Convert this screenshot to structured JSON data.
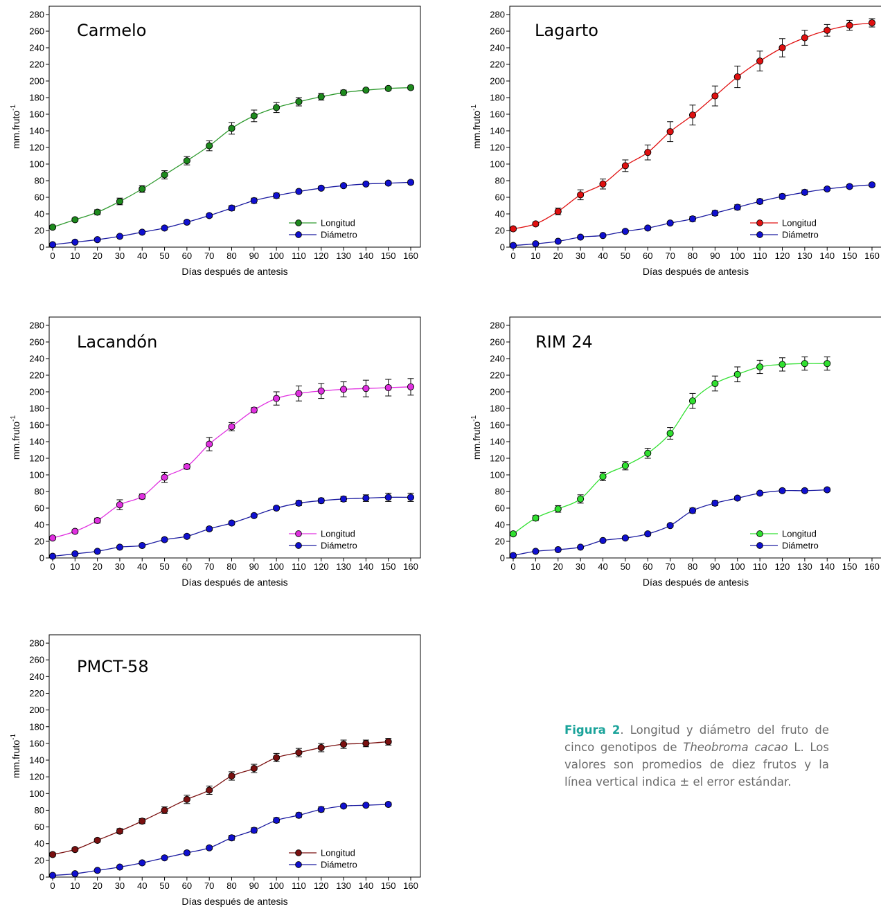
{
  "chart_data": [
    {
      "type": "line",
      "title": "Carmelo",
      "xlabel": "Días después de antesis",
      "ylabel": "mm.fruto",
      "ylabel_sup": "-1",
      "xlim": [
        0,
        160
      ],
      "ylim": [
        0,
        290
      ],
      "xticks": [
        0,
        10,
        20,
        30,
        40,
        50,
        60,
        70,
        80,
        90,
        100,
        110,
        120,
        130,
        140,
        150,
        160
      ],
      "yticks": [
        0,
        20,
        40,
        60,
        80,
        100,
        120,
        140,
        160,
        180,
        200,
        220,
        240,
        260,
        280
      ],
      "legend_position": "bottom-right",
      "grid": false,
      "series": [
        {
          "name": "Longitud",
          "color": "#1d8a1d",
          "line_color": "#2f9a2f",
          "x": [
            0,
            10,
            20,
            30,
            40,
            50,
            60,
            70,
            80,
            90,
            100,
            110,
            120,
            130,
            140,
            150,
            160
          ],
          "y": [
            24,
            33,
            42,
            55,
            70,
            87,
            104,
            122,
            143,
            158,
            168,
            175,
            181,
            186,
            189,
            191,
            192
          ],
          "err": [
            2,
            2,
            3,
            4,
            4,
            5,
            5,
            6,
            7,
            7,
            6,
            5,
            4,
            3,
            2,
            2,
            2
          ]
        },
        {
          "name": "Diámetro",
          "color": "#1010d0",
          "line_color": "#1a1aa0",
          "x": [
            0,
            10,
            20,
            30,
            40,
            50,
            60,
            70,
            80,
            90,
            100,
            110,
            120,
            130,
            140,
            150,
            160
          ],
          "y": [
            3,
            6,
            9,
            13,
            18,
            23,
            30,
            38,
            47,
            56,
            62,
            67,
            71,
            74,
            76,
            77,
            78
          ],
          "err": [
            1,
            1,
            1,
            1,
            1,
            2,
            2,
            2,
            3,
            3,
            3,
            2,
            2,
            2,
            2,
            2,
            2
          ]
        }
      ]
    },
    {
      "type": "line",
      "title": "Lagarto",
      "xlabel": "Días después de antesis",
      "ylabel": "mm.fruto",
      "ylabel_sup": "-1",
      "xlim": [
        0,
        160
      ],
      "ylim": [
        0,
        290
      ],
      "xticks": [
        0,
        10,
        20,
        30,
        40,
        50,
        60,
        70,
        80,
        90,
        100,
        110,
        120,
        130,
        140,
        150,
        160
      ],
      "yticks": [
        0,
        20,
        40,
        60,
        80,
        100,
        120,
        140,
        160,
        180,
        200,
        220,
        240,
        260,
        280
      ],
      "legend_position": "bottom-right",
      "grid": false,
      "series": [
        {
          "name": "Longitud",
          "color": "#e01010",
          "line_color": "#e01010",
          "x": [
            0,
            10,
            20,
            30,
            40,
            50,
            60,
            70,
            80,
            90,
            100,
            110,
            120,
            130,
            140,
            150,
            160
          ],
          "y": [
            22,
            28,
            43,
            63,
            76,
            98,
            114,
            139,
            159,
            182,
            205,
            224,
            240,
            252,
            261,
            267,
            270
          ],
          "err": [
            2,
            2,
            4,
            6,
            6,
            7,
            9,
            12,
            12,
            12,
            13,
            12,
            11,
            9,
            7,
            6,
            5
          ]
        },
        {
          "name": "Diámetro",
          "color": "#1010d0",
          "line_color": "#1a1aa0",
          "x": [
            0,
            10,
            20,
            30,
            40,
            50,
            60,
            70,
            80,
            90,
            100,
            110,
            120,
            130,
            140,
            150,
            160
          ],
          "y": [
            2,
            4,
            7,
            12,
            14,
            19,
            23,
            29,
            34,
            41,
            48,
            55,
            61,
            66,
            70,
            73,
            75
          ],
          "err": [
            1,
            1,
            1,
            1,
            1,
            2,
            2,
            2,
            3,
            3,
            3,
            3,
            3,
            3,
            2,
            2,
            2
          ]
        }
      ]
    },
    {
      "type": "line",
      "title": "Lacandón",
      "xlabel": "Días después de antesis",
      "ylabel": "mm.fruto",
      "ylabel_sup": "-1",
      "xlim": [
        0,
        160
      ],
      "ylim": [
        0,
        290
      ],
      "xticks": [
        0,
        10,
        20,
        30,
        40,
        50,
        60,
        70,
        80,
        90,
        100,
        110,
        120,
        130,
        140,
        150,
        160
      ],
      "yticks": [
        0,
        20,
        40,
        60,
        80,
        100,
        120,
        140,
        160,
        180,
        200,
        220,
        240,
        260,
        280
      ],
      "legend_position": "bottom-right",
      "grid": false,
      "series": [
        {
          "name": "Longitud",
          "color": "#e030e0",
          "line_color": "#e030e0",
          "x": [
            0,
            10,
            20,
            30,
            40,
            50,
            60,
            70,
            80,
            90,
            100,
            110,
            120,
            130,
            140,
            150,
            160
          ],
          "y": [
            24,
            32,
            45,
            64,
            74,
            97,
            110,
            137,
            158,
            178,
            192,
            198,
            201,
            203,
            204,
            205,
            206
          ],
          "err": [
            2,
            2,
            3,
            6,
            3,
            6,
            3,
            8,
            5,
            3,
            8,
            9,
            9,
            9,
            10,
            10,
            10
          ]
        },
        {
          "name": "Diámetro",
          "color": "#1010d0",
          "line_color": "#1a1aa0",
          "x": [
            0,
            10,
            20,
            30,
            40,
            50,
            60,
            70,
            80,
            90,
            100,
            110,
            120,
            130,
            140,
            150,
            160
          ],
          "y": [
            2,
            5,
            8,
            13,
            15,
            22,
            26,
            35,
            42,
            51,
            60,
            66,
            69,
            71,
            72,
            73,
            73
          ],
          "err": [
            1,
            1,
            1,
            1,
            1,
            2,
            2,
            2,
            2,
            2,
            2,
            3,
            3,
            3,
            4,
            5,
            5
          ]
        }
      ]
    },
    {
      "type": "line",
      "title": "RIM 24",
      "xlabel": "Días después de antesis",
      "ylabel": "mm.fruto",
      "ylabel_sup": "-1",
      "xlim": [
        0,
        160
      ],
      "ylim": [
        0,
        290
      ],
      "xticks": [
        0,
        10,
        20,
        30,
        40,
        50,
        60,
        70,
        80,
        90,
        100,
        110,
        120,
        130,
        140,
        150,
        160
      ],
      "yticks": [
        0,
        20,
        40,
        60,
        80,
        100,
        120,
        140,
        160,
        180,
        200,
        220,
        240,
        260,
        280
      ],
      "legend_position": "bottom-right",
      "grid": false,
      "series": [
        {
          "name": "Longitud",
          "color": "#30e030",
          "line_color": "#30e030",
          "x": [
            0,
            10,
            20,
            30,
            40,
            50,
            60,
            70,
            80,
            90,
            100,
            110,
            120,
            130,
            140
          ],
          "y": [
            29,
            48,
            59,
            71,
            98,
            111,
            126,
            150,
            189,
            210,
            221,
            230,
            233,
            234,
            234
          ],
          "err": [
            2,
            3,
            4,
            5,
            5,
            5,
            6,
            7,
            9,
            9,
            9,
            8,
            8,
            8,
            8
          ]
        },
        {
          "name": "Diámetro",
          "color": "#1010d0",
          "line_color": "#1a1aa0",
          "x": [
            0,
            10,
            20,
            30,
            40,
            50,
            60,
            70,
            80,
            90,
            100,
            110,
            120,
            130,
            140
          ],
          "y": [
            3,
            8,
            10,
            13,
            21,
            24,
            29,
            39,
            57,
            66,
            72,
            78,
            81,
            81,
            82
          ],
          "err": [
            1,
            1,
            1,
            1,
            1,
            2,
            2,
            2,
            3,
            3,
            2,
            2,
            2,
            2,
            2
          ]
        }
      ]
    },
    {
      "type": "line",
      "title": "PMCT-58",
      "xlabel": "Días después de antesis",
      "ylabel": "mm.fruto",
      "ylabel_sup": "-1",
      "xlim": [
        0,
        160
      ],
      "ylim": [
        0,
        290
      ],
      "xticks": [
        0,
        10,
        20,
        30,
        40,
        50,
        60,
        70,
        80,
        90,
        100,
        110,
        120,
        130,
        140,
        150,
        160
      ],
      "yticks": [
        0,
        20,
        40,
        60,
        80,
        100,
        120,
        140,
        160,
        180,
        200,
        220,
        240,
        260,
        280
      ],
      "legend_position": "bottom-right",
      "grid": false,
      "series": [
        {
          "name": "Longitud",
          "color": "#7a1010",
          "line_color": "#7a1010",
          "x": [
            0,
            10,
            20,
            30,
            40,
            50,
            60,
            70,
            80,
            90,
            100,
            110,
            120,
            130,
            140,
            150
          ],
          "y": [
            27,
            33,
            44,
            55,
            67,
            80,
            93,
            104,
            121,
            130,
            143,
            149,
            155,
            159,
            160,
            162
          ],
          "err": [
            2,
            2,
            2,
            3,
            3,
            4,
            5,
            5,
            5,
            5,
            5,
            5,
            5,
            5,
            4,
            4
          ]
        },
        {
          "name": "Diámetro",
          "color": "#1010d0",
          "line_color": "#1a1aa0",
          "x": [
            0,
            10,
            20,
            30,
            40,
            50,
            60,
            70,
            80,
            90,
            100,
            110,
            120,
            130,
            140,
            150
          ],
          "y": [
            2,
            4,
            8,
            12,
            17,
            23,
            29,
            35,
            47,
            56,
            68,
            74,
            81,
            85,
            86,
            87
          ],
          "err": [
            1,
            1,
            1,
            1,
            1,
            1,
            2,
            2,
            3,
            3,
            3,
            3,
            3,
            2,
            2,
            2
          ]
        }
      ]
    }
  ],
  "caption": {
    "lead": "Figura",
    "number": "2",
    "body_1": ". Longitud y diámetro del fruto de cinco genotipos de ",
    "species_italic": "Theobroma cacao",
    "body_2": " L. Los valores son promedios de diez frutos y la línea vertical indica ± el error estándar."
  }
}
